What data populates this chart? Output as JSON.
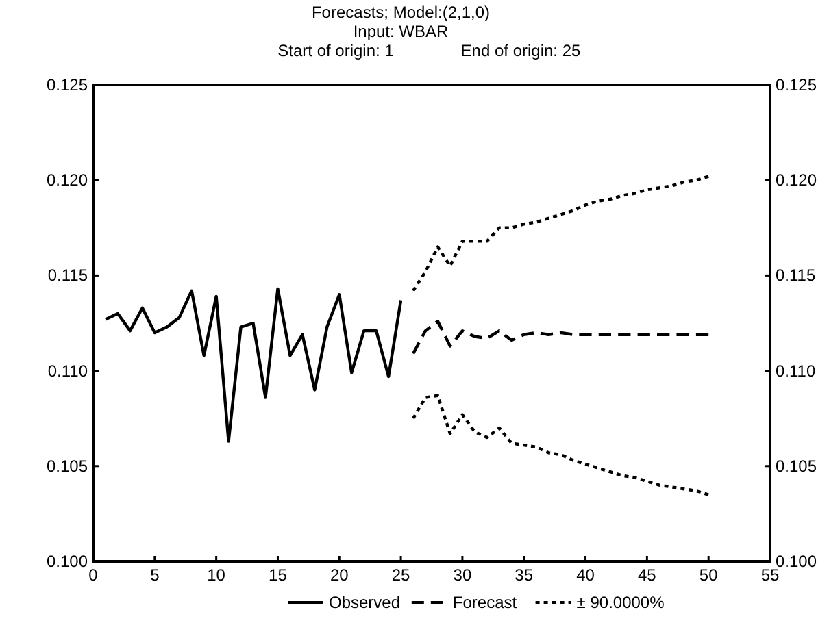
{
  "chart_data": {
    "type": "line",
    "title": "Forecasts; Model:(2,1,0)",
    "subtitle": "Input: WBAR",
    "annotations": [
      "Start of origin: 1",
      "End of origin: 25"
    ],
    "xlim": [
      0,
      55
    ],
    "xticks": [
      0,
      5,
      10,
      15,
      20,
      25,
      30,
      35,
      40,
      45,
      50,
      55
    ],
    "ylim": [
      0.1,
      0.125
    ],
    "yticks": [
      {
        "value": 0.1,
        "label": "0.100"
      },
      {
        "value": 0.105,
        "label": "0.105"
      },
      {
        "value": 0.11,
        "label": "0.110"
      },
      {
        "value": 0.115,
        "label": "0.115"
      },
      {
        "value": 0.12,
        "label": "0.120"
      },
      {
        "value": 0.125,
        "label": "0.125"
      }
    ],
    "y2lim": [
      0.1,
      0.125
    ],
    "y2ticks": [
      {
        "value": 0.1,
        "label": "0.100"
      },
      {
        "value": 0.105,
        "label": "0.105"
      },
      {
        "value": 0.11,
        "label": "0.110"
      },
      {
        "value": 0.115,
        "label": "0.115"
      },
      {
        "value": 0.12,
        "label": "0.120"
      },
      {
        "value": 0.125,
        "label": "0.125"
      }
    ],
    "legend": "bottom",
    "marker": "none",
    "series": [
      {
        "name": "Observed",
        "color": "#000000",
        "line_style": "solid",
        "x": [
          1,
          2,
          3,
          4,
          5,
          6,
          7,
          8,
          9,
          10,
          11,
          12,
          13,
          14,
          15,
          16,
          17,
          18,
          19,
          20,
          21,
          22,
          23,
          24,
          25
        ],
        "values": [
          0.1127,
          0.113,
          0.1121,
          0.1133,
          0.112,
          0.1123,
          0.1128,
          0.1142,
          0.1108,
          0.1139,
          0.1063,
          0.1123,
          0.1125,
          0.1086,
          0.1143,
          0.1108,
          0.1119,
          0.109,
          0.1123,
          0.114,
          0.1099,
          0.1121,
          0.1121,
          0.1097,
          0.1137
        ]
      },
      {
        "name": "Forecast",
        "color": "#000000",
        "line_style": "dashed",
        "x": [
          26,
          27,
          28,
          29,
          30,
          31,
          32,
          33,
          34,
          35,
          36,
          37,
          38,
          39,
          40,
          41,
          42,
          43,
          44,
          45,
          46,
          47,
          48,
          49,
          50
        ],
        "values": [
          0.1109,
          0.1121,
          0.1126,
          0.1113,
          0.1121,
          0.1118,
          0.1117,
          0.1121,
          0.1116,
          0.1119,
          0.112,
          0.1119,
          0.112,
          0.1119,
          0.1119,
          0.1119,
          0.1119,
          0.1119,
          0.1119,
          0.1119,
          0.1119,
          0.1119,
          0.1119,
          0.1119,
          0.1119
        ]
      },
      {
        "name": "± 90.0000%",
        "color": "#000000",
        "line_style": "dotted",
        "x": [
          26,
          27,
          28,
          29,
          30,
          31,
          32,
          33,
          34,
          35,
          36,
          37,
          38,
          39,
          40,
          41,
          42,
          43,
          44,
          45,
          46,
          47,
          48,
          49,
          50
        ],
        "values": [
          0.1142,
          0.1152,
          0.1165,
          0.1155,
          0.1168,
          0.1168,
          0.1168,
          0.1175,
          0.1175,
          0.1177,
          0.1178,
          0.118,
          0.1182,
          0.1184,
          0.1187,
          0.1189,
          0.119,
          0.1192,
          0.1193,
          0.1195,
          0.1196,
          0.1197,
          0.1199,
          0.12,
          0.1202
        ]
      },
      {
        "color": "#000000",
        "line_style": "dotted",
        "x": [
          26,
          27,
          28,
          29,
          30,
          31,
          32,
          33,
          34,
          35,
          36,
          37,
          38,
          39,
          40,
          41,
          42,
          43,
          44,
          45,
          46,
          47,
          48,
          49,
          50
        ],
        "values": [
          0.1075,
          0.1086,
          0.1087,
          0.1067,
          0.1077,
          0.1068,
          0.1065,
          0.107,
          0.1062,
          0.1061,
          0.106,
          0.1057,
          0.1056,
          0.1053,
          0.1051,
          0.1049,
          0.1047,
          0.1045,
          0.1044,
          0.1042,
          0.104,
          0.1039,
          0.1038,
          0.1037,
          0.1035
        ]
      }
    ]
  }
}
